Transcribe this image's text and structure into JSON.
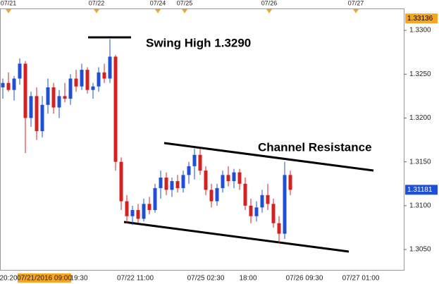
{
  "chart_data": {
    "type": "candlestick",
    "annotations": [
      "Swing High 1.3290",
      "Channel Resistance"
    ],
    "top_dates": [
      "07/21",
      "07/22",
      "07/24",
      "07/25",
      "07/26",
      "07/27"
    ],
    "bottom_labels": [
      "20:20",
      "07/21/2016 09:00",
      "19:30",
      "07/22 11:00",
      "07/25 02:30",
      "18:00",
      "07/26 09:30",
      "07/27 01:00"
    ],
    "open": [
      1.3235,
      1.324,
      1.3232,
      1.3245,
      1.3262,
      1.32,
      1.3225,
      1.3185,
      1.3215,
      1.3235,
      1.3212,
      1.3225,
      1.3222,
      1.3245,
      1.3236,
      1.3255,
      1.3232,
      1.3236,
      1.3252,
      1.3245,
      1.327,
      1.315,
      1.3105,
      1.3088,
      1.3095,
      1.3085,
      1.3102,
      1.3095,
      1.312,
      1.3132,
      1.3118,
      1.3128,
      1.312,
      1.3135,
      1.3145,
      1.3158,
      1.314,
      1.3118,
      1.3105,
      1.312,
      1.3135,
      1.3128,
      1.3138,
      1.3125,
      1.31,
      1.3088,
      1.3098,
      1.3112,
      1.3102,
      1.308,
      1.3068,
      1.3135
    ],
    "high": [
      1.3245,
      1.3252,
      1.3248,
      1.3268,
      1.3265,
      1.323,
      1.3235,
      1.3225,
      1.3245,
      1.324,
      1.3232,
      1.324,
      1.325,
      1.3255,
      1.3262,
      1.3258,
      1.324,
      1.3258,
      1.3262,
      1.329,
      1.3272,
      1.3155,
      1.3112,
      1.31,
      1.3102,
      1.3108,
      1.311,
      1.3125,
      1.314,
      1.3138,
      1.3132,
      1.3135,
      1.314,
      1.315,
      1.3165,
      1.3165,
      1.3145,
      1.3125,
      1.3125,
      1.314,
      1.3145,
      1.3142,
      1.3142,
      1.3132,
      1.3108,
      1.3105,
      1.3118,
      1.3125,
      1.3108,
      1.3088,
      1.315,
      1.314
    ],
    "low": [
      1.3222,
      1.323,
      1.322,
      1.3238,
      1.316,
      1.319,
      1.3175,
      1.3178,
      1.3205,
      1.3205,
      1.32,
      1.3218,
      1.3215,
      1.323,
      1.3232,
      1.3228,
      1.3222,
      1.323,
      1.324,
      1.324,
      1.314,
      1.3095,
      1.308,
      1.3078,
      1.308,
      1.3082,
      1.309,
      1.3092,
      1.3108,
      1.3112,
      1.311,
      1.3115,
      1.3115,
      1.3125,
      1.313,
      1.3135,
      1.3112,
      1.3098,
      1.31,
      1.3115,
      1.3122,
      1.312,
      1.3118,
      1.3095,
      1.308,
      1.3082,
      1.3092,
      1.3095,
      1.3075,
      1.3057,
      1.3062,
      1.3112
    ],
    "close": [
      1.324,
      1.3232,
      1.3245,
      1.3262,
      1.32,
      1.3225,
      1.3185,
      1.3215,
      1.3235,
      1.3212,
      1.3225,
      1.3222,
      1.3245,
      1.3236,
      1.3255,
      1.3232,
      1.3236,
      1.3252,
      1.3245,
      1.327,
      1.315,
      1.3105,
      1.3088,
      1.3095,
      1.3085,
      1.3102,
      1.3095,
      1.312,
      1.3132,
      1.3118,
      1.3128,
      1.312,
      1.3135,
      1.3145,
      1.3158,
      1.314,
      1.3118,
      1.3105,
      1.312,
      1.3135,
      1.3128,
      1.3138,
      1.3125,
      1.31,
      1.3088,
      1.3098,
      1.3112,
      1.3102,
      1.308,
      1.3068,
      1.3135,
      1.3118
    ],
    "up_color": "#1f4fd6",
    "down_color": "#d42020",
    "ylim": [
      1.30267,
      1.3325
    ],
    "yticks": [
      {
        "value": 1.305,
        "label": "1.3050"
      },
      {
        "value": 1.31,
        "label": "1.3100"
      },
      {
        "value": 1.315,
        "label": "1.3150"
      },
      {
        "value": 1.32,
        "label": "1.3200"
      },
      {
        "value": 1.325,
        "label": "1.3250"
      },
      {
        "value": 1.33,
        "label": "1.3300"
      }
    ],
    "high_tag": 1.33136,
    "last_price": 1.31181
  }
}
